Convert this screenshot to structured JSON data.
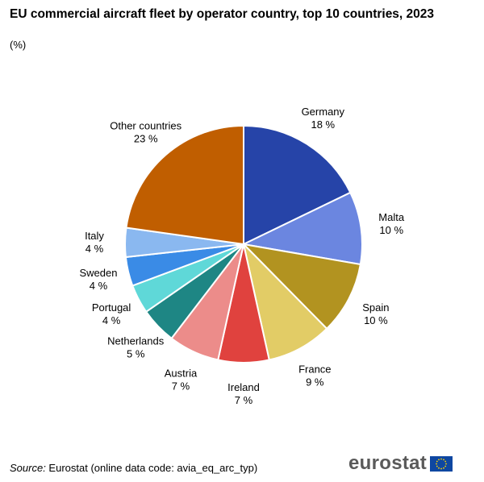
{
  "header": {
    "title": "EU commercial aircraft fleet by operator country, top 10 countries, 2023",
    "subtitle": "(%)"
  },
  "footer": {
    "source_label": "Source:",
    "source_text": " Eurostat (online data code: avia_eq_arc_typ)",
    "logo_text": "eurostat"
  },
  "chart_data": {
    "type": "pie",
    "title": "EU commercial aircraft fleet by operator country, top 10 countries, 2023",
    "unit": "%",
    "slices": [
      {
        "label": "Germany",
        "value": 18,
        "display": "18 %",
        "color": "#2644a8"
      },
      {
        "label": "Malta",
        "value": 10,
        "display": "10 %",
        "color": "#6b86e0"
      },
      {
        "label": "Spain",
        "value": 10,
        "display": "10 %",
        "color": "#b29320"
      },
      {
        "label": "France",
        "value": 9,
        "display": "9 %",
        "color": "#e2cc66"
      },
      {
        "label": "Ireland",
        "value": 7,
        "display": "7 %",
        "color": "#e0423e"
      },
      {
        "label": "Austria",
        "value": 7,
        "display": "7 %",
        "color": "#ec8c8a"
      },
      {
        "label": "Netherlands",
        "value": 5,
        "display": "5 %",
        "color": "#1e8684"
      },
      {
        "label": "Portugal",
        "value": 4,
        "display": "4 %",
        "color": "#5fd8d8"
      },
      {
        "label": "Sweden",
        "value": 4,
        "display": "4 %",
        "color": "#3a8be6"
      },
      {
        "label": "Italy",
        "value": 4,
        "display": "4 %",
        "color": "#8ab8f0"
      },
      {
        "label": "Other countries",
        "value": 23,
        "display": "23 %",
        "color": "#c05e00"
      }
    ]
  }
}
